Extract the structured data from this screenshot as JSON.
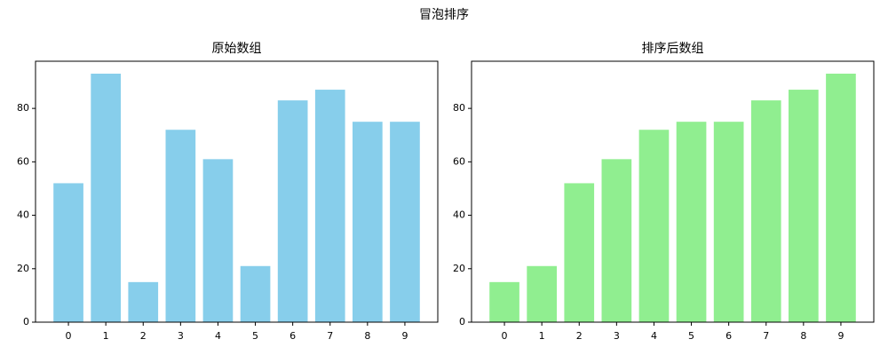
{
  "title": "冒泡排序",
  "chart_data": [
    {
      "type": "bar",
      "title": "原始数组",
      "categories": [
        "0",
        "1",
        "2",
        "3",
        "4",
        "5",
        "6",
        "7",
        "8",
        "9"
      ],
      "values": [
        52,
        93,
        15,
        72,
        61,
        21,
        83,
        87,
        75,
        75
      ],
      "color": "#87ceeb",
      "ylim": [
        0,
        97.65
      ],
      "yticks": [
        0,
        20,
        40,
        60,
        80
      ],
      "grid": false
    },
    {
      "type": "bar",
      "title": "排序后数组",
      "categories": [
        "0",
        "1",
        "2",
        "3",
        "4",
        "5",
        "6",
        "7",
        "8",
        "9"
      ],
      "values": [
        15,
        21,
        52,
        61,
        72,
        75,
        75,
        83,
        87,
        93
      ],
      "color": "#90ee90",
      "ylim": [
        0,
        97.65
      ],
      "yticks": [
        0,
        20,
        40,
        60,
        80
      ],
      "grid": false
    }
  ]
}
